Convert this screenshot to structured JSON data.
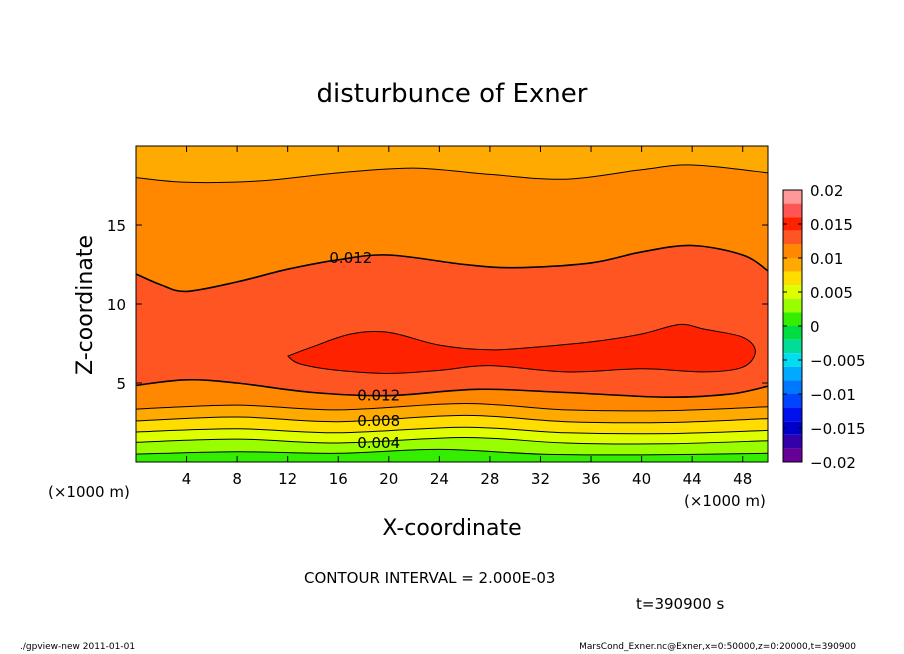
{
  "chart_data": {
    "type": "heatmap",
    "title": "disturbunce of Exner",
    "xlabel": "X-coordinate",
    "ylabel": "Z-coordinate",
    "x_unit_left": "(×1000 m)",
    "x_unit_right": "(×1000 m)",
    "xlim": [
      0,
      50
    ],
    "ylim": [
      0,
      20
    ],
    "x_ticks": [
      4,
      8,
      12,
      16,
      20,
      24,
      28,
      32,
      36,
      40,
      44,
      48
    ],
    "y_ticks": [
      5,
      10,
      15
    ],
    "contour_interval_text": "CONTOUR INTERVAL = 2.000E-03",
    "time_text": "t=390900 s",
    "contour_labels": [
      {
        "text": "0.012",
        "x": 15.3,
        "z": 12.9
      },
      {
        "text": "0.012",
        "x": 17.5,
        "z": 4.2
      },
      {
        "text": "0.008",
        "x": 17.5,
        "z": 2.6
      },
      {
        "text": "0.004",
        "x": 17.5,
        "z": 1.2
      }
    ],
    "contours": [
      {
        "level": 0.002,
        "points": [
          [
            0,
            0.5
          ],
          [
            8,
            0.65
          ],
          [
            16,
            0.55
          ],
          [
            24,
            0.8
          ],
          [
            32,
            0.5
          ],
          [
            40,
            0.45
          ],
          [
            50,
            0.55
          ]
        ]
      },
      {
        "level": 0.004,
        "points": [
          [
            0,
            1.25
          ],
          [
            8,
            1.45
          ],
          [
            16,
            1.2
          ],
          [
            26,
            1.55
          ],
          [
            34,
            1.2
          ],
          [
            42,
            1.15
          ],
          [
            50,
            1.35
          ]
        ]
      },
      {
        "level": 0.006,
        "points": [
          [
            0,
            1.9
          ],
          [
            8,
            2.1
          ],
          [
            16,
            1.85
          ],
          [
            26,
            2.2
          ],
          [
            34,
            1.85
          ],
          [
            42,
            1.8
          ],
          [
            50,
            2.0
          ]
        ]
      },
      {
        "level": 0.008,
        "points": [
          [
            0,
            2.6
          ],
          [
            8,
            2.85
          ],
          [
            16,
            2.55
          ],
          [
            26,
            2.95
          ],
          [
            34,
            2.55
          ],
          [
            42,
            2.5
          ],
          [
            50,
            2.75
          ]
        ]
      },
      {
        "level": 0.01,
        "points": [
          [
            0,
            3.35
          ],
          [
            8,
            3.6
          ],
          [
            16,
            3.3
          ],
          [
            26,
            3.7
          ],
          [
            34,
            3.3
          ],
          [
            42,
            3.25
          ],
          [
            50,
            3.5
          ]
        ]
      },
      {
        "level": 0.012,
        "points": [
          [
            0,
            4.85
          ],
          [
            4,
            5.2
          ],
          [
            8,
            5.0
          ],
          [
            14,
            4.4
          ],
          [
            20,
            4.2
          ],
          [
            27,
            4.6
          ],
          [
            34,
            4.4
          ],
          [
            42,
            4.1
          ],
          [
            47,
            4.3
          ],
          [
            50,
            4.8
          ]
        ]
      },
      {
        "level": 0.012,
        "points": [
          [
            0,
            11.9
          ],
          [
            2,
            11.2
          ],
          [
            4,
            10.8
          ],
          [
            8,
            11.4
          ],
          [
            12,
            12.2
          ],
          [
            16,
            12.8
          ],
          [
            20,
            13.1
          ],
          [
            26,
            12.5
          ],
          [
            30,
            12.3
          ],
          [
            36,
            12.6
          ],
          [
            40,
            13.3
          ],
          [
            44,
            13.7
          ],
          [
            48,
            13.1
          ],
          [
            50,
            12.1
          ]
        ]
      },
      {
        "level": 0.01,
        "points": [
          [
            0,
            18.0
          ],
          [
            4,
            17.7
          ],
          [
            10,
            17.8
          ],
          [
            16,
            18.3
          ],
          [
            22,
            18.6
          ],
          [
            28,
            18.2
          ],
          [
            34,
            17.9
          ],
          [
            40,
            18.5
          ],
          [
            44,
            18.8
          ],
          [
            50,
            18.3
          ]
        ]
      }
    ],
    "regions": [
      {
        "color": "#ff9900",
        "z_low": 14.5,
        "z_high": 18.2
      },
      {
        "color": "#ffaa00",
        "z_low": 18.2,
        "z_high": 20.0
      }
    ],
    "core_region": {
      "level": 0.014,
      "points": [
        [
          12,
          6.7
        ],
        [
          14,
          7.3
        ],
        [
          17,
          8.1
        ],
        [
          20,
          8.2
        ],
        [
          24,
          7.4
        ],
        [
          28,
          7.1
        ],
        [
          32,
          7.3
        ],
        [
          36,
          7.6
        ],
        [
          40,
          8.1
        ],
        [
          43,
          8.7
        ],
        [
          45,
          8.4
        ],
        [
          48,
          7.9
        ],
        [
          49,
          7.0
        ],
        [
          48,
          6.0
        ],
        [
          45,
          5.7
        ],
        [
          40,
          5.9
        ],
        [
          34,
          5.7
        ],
        [
          28,
          6.1
        ],
        [
          24,
          5.8
        ],
        [
          20,
          5.6
        ],
        [
          16,
          5.8
        ],
        [
          13,
          6.2
        ]
      ]
    },
    "colorbar": {
      "ticks": [
        "0.02",
        "0.015",
        "0.01",
        "0.005",
        "0",
        "−0.005",
        "−0.01",
        "−0.015",
        "−0.02"
      ],
      "levels": [
        {
          "low": 0.018,
          "high": 0.02,
          "color": "#ff9999"
        },
        {
          "low": 0.016,
          "high": 0.018,
          "color": "#ff5555"
        },
        {
          "low": 0.014,
          "high": 0.016,
          "color": "#ff2200"
        },
        {
          "low": 0.012,
          "high": 0.014,
          "color": "#ff5522"
        },
        {
          "low": 0.01,
          "high": 0.012,
          "color": "#ff8800"
        },
        {
          "low": 0.008,
          "high": 0.01,
          "color": "#ffaa00"
        },
        {
          "low": 0.006,
          "high": 0.008,
          "color": "#ffdd00"
        },
        {
          "low": 0.004,
          "high": 0.006,
          "color": "#ddff00"
        },
        {
          "low": 0.002,
          "high": 0.004,
          "color": "#99ff00"
        },
        {
          "low": 0.0,
          "high": 0.002,
          "color": "#33ee00"
        },
        {
          "low": -0.002,
          "high": 0.0,
          "color": "#00dd44"
        },
        {
          "low": -0.004,
          "high": -0.002,
          "color": "#00dd99"
        },
        {
          "low": -0.006,
          "high": -0.004,
          "color": "#00ddee"
        },
        {
          "low": -0.008,
          "high": -0.006,
          "color": "#00aaff"
        },
        {
          "low": -0.01,
          "high": -0.008,
          "color": "#0077ff"
        },
        {
          "low": -0.012,
          "high": -0.01,
          "color": "#0044ff"
        },
        {
          "low": -0.014,
          "high": -0.012,
          "color": "#0011ee"
        },
        {
          "low": -0.016,
          "high": -0.014,
          "color": "#0000cc"
        },
        {
          "low": -0.018,
          "high": -0.016,
          "color": "#3300aa"
        },
        {
          "low": -0.02,
          "high": -0.018,
          "color": "#660099"
        }
      ]
    }
  },
  "footer": {
    "left": "./gpview-new   2011-01-01",
    "right": "MarsCond_Exner.nc@Exner,x=0:50000,z=0:20000,t=390900"
  }
}
